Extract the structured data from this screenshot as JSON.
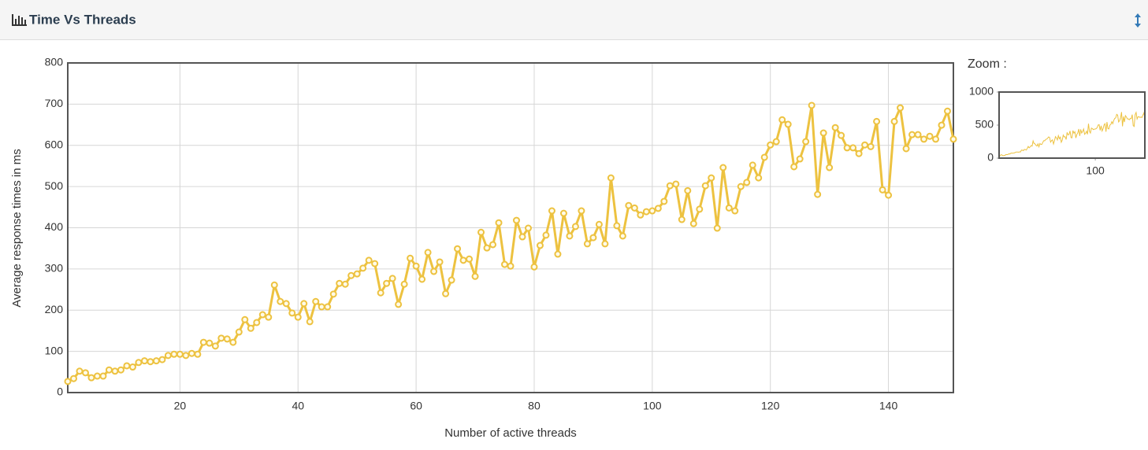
{
  "chart_data": {
    "type": "line",
    "title": "Time Vs Threads",
    "x_label": "Number of active threads",
    "y_label": "Average response times in ms",
    "x": [
      1,
      2,
      3,
      4,
      5,
      6,
      7,
      8,
      9,
      10,
      11,
      12,
      13,
      14,
      15,
      16,
      17,
      18,
      19,
      20,
      21,
      22,
      23,
      24,
      25,
      26,
      27,
      28,
      29,
      30,
      31,
      32,
      33,
      34,
      35,
      36,
      37,
      38,
      39,
      40,
      41,
      42,
      43,
      44,
      45,
      46,
      47,
      48,
      49,
      50,
      51,
      52,
      53,
      54,
      55,
      56,
      57,
      58,
      59,
      60,
      61,
      62,
      63,
      64,
      65,
      66,
      67,
      68,
      69,
      70,
      71,
      72,
      73,
      74,
      75,
      76,
      77,
      78,
      79,
      80,
      81,
      82,
      83,
      84,
      85,
      86,
      87,
      88,
      89,
      90,
      91,
      92,
      93,
      94,
      95,
      96,
      97,
      98,
      99,
      100,
      101,
      102,
      103,
      104,
      105,
      106,
      107,
      108,
      109,
      110,
      111,
      112,
      113,
      114,
      115,
      116,
      117,
      118,
      119,
      120,
      121,
      122,
      123,
      124,
      125,
      126,
      127,
      128,
      129,
      130,
      131,
      132,
      133,
      134,
      135,
      136,
      137,
      138,
      139,
      140,
      141,
      142,
      143,
      144,
      145,
      146,
      147,
      148,
      149,
      150,
      151
    ],
    "values": [
      27,
      34,
      52,
      48,
      36,
      40,
      40,
      55,
      52,
      55,
      65,
      62,
      73,
      77,
      75,
      77,
      80,
      90,
      93,
      93,
      90,
      95,
      93,
      122,
      120,
      113,
      132,
      130,
      122,
      147,
      177,
      156,
      170,
      189,
      183,
      261,
      221,
      216,
      193,
      183,
      216,
      172,
      221,
      208,
      208,
      239,
      265,
      263,
      284,
      288,
      302,
      321,
      313,
      242,
      265,
      277,
      214,
      263,
      326,
      307,
      275,
      340,
      294,
      317,
      240,
      273,
      349,
      321,
      324,
      282,
      389,
      351,
      359,
      412,
      311,
      307,
      418,
      378,
      399,
      305,
      357,
      382,
      441,
      336,
      435,
      380,
      403,
      441,
      361,
      376,
      408,
      361,
      521,
      405,
      380,
      454,
      448,
      431,
      439,
      441,
      447,
      464,
      502,
      506,
      420,
      490,
      410,
      445,
      502,
      521,
      399,
      546,
      448,
      441,
      500,
      510,
      552,
      521,
      571,
      601,
      609,
      662,
      651,
      548,
      567,
      609,
      697,
      481,
      630,
      546,
      643,
      624,
      594,
      594,
      580,
      601,
      597,
      658,
      492,
      479,
      658,
      691,
      592,
      626,
      626,
      615,
      622,
      615,
      649,
      683,
      615
    ],
    "color": "#edc240",
    "xlim": [
      1,
      151
    ],
    "xticks": [
      20,
      40,
      60,
      80,
      100,
      120,
      140
    ],
    "ylim": [
      0,
      800
    ],
    "yticks": [
      0,
      100,
      200,
      300,
      400,
      500,
      600,
      700,
      800
    ],
    "grid": true,
    "zoom": {
      "title": "Zoom :",
      "ylim": [
        0,
        1000
      ],
      "yticks": [
        0,
        500,
        1000
      ],
      "xticks": [
        100
      ]
    }
  }
}
